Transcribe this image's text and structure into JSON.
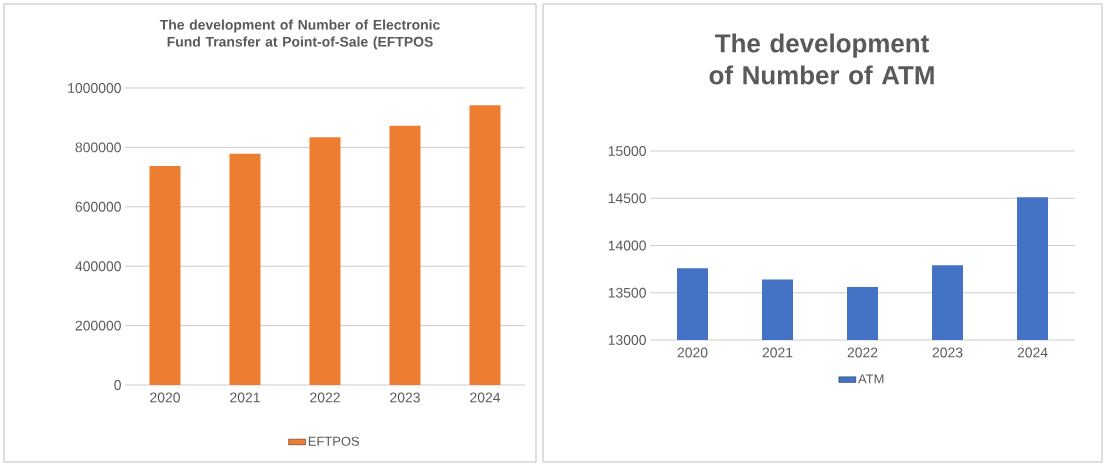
{
  "chart_data": [
    {
      "type": "bar",
      "title": "The development of Number of Electronic Fund Transfer at Point-of-Sale (EFTPOS",
      "categories": [
        "2020",
        "2021",
        "2022",
        "2023",
        "2024"
      ],
      "series": [
        {
          "name": "EFTPOS",
          "color": "#ed7d31",
          "values": [
            737000,
            779000,
            834000,
            873000,
            942000
          ]
        }
      ],
      "ylim": [
        0,
        1000000
      ],
      "yticks": [
        0,
        200000,
        400000,
        600000,
        800000,
        1000000
      ],
      "grid": "y",
      "legend": "bottom"
    },
    {
      "type": "bar",
      "title": "The development of Number of ATM",
      "categories": [
        "2020",
        "2021",
        "2022",
        "2023",
        "2024"
      ],
      "series": [
        {
          "name": "ATM",
          "color": "#4472c4",
          "values": [
            13760,
            13640,
            13560,
            13790,
            14510
          ]
        }
      ],
      "ylim": [
        13000,
        15000
      ],
      "yticks": [
        13000,
        13500,
        14000,
        14500,
        15000
      ],
      "grid": "y",
      "legend": "bottom"
    }
  ]
}
